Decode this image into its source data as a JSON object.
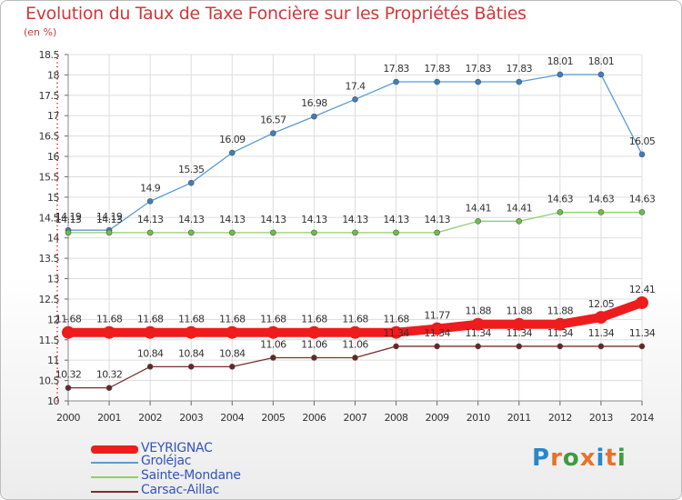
{
  "header": {
    "title": "Evolution du Taux de Taxe Foncière sur les Propriétés Bâties",
    "subtitle": "(en %)"
  },
  "logo": {
    "text": "Proxiti",
    "colors": [
      "#2a87c9",
      "#e8722a",
      "#3f9b3f",
      "#e8722a",
      "#2a87c9",
      "#e8722a",
      "#3f9b3f"
    ]
  },
  "chart_data": {
    "type": "line",
    "title": "Evolution du Taux de Taxe Foncière sur les Propriétés Bâties",
    "subtitle": "(en %)",
    "x": [
      "2000",
      "2001",
      "2002",
      "2003",
      "2004",
      "2005",
      "2006",
      "2007",
      "2008",
      "2009",
      "2010",
      "2011",
      "2012",
      "2013",
      "2014"
    ],
    "ylim": [
      10,
      18.5
    ],
    "yticks": [
      "10",
      "10.5",
      "11",
      "11.5",
      "12",
      "12.5",
      "13",
      "13.5",
      "14",
      "14.5",
      "15",
      "15.5",
      "16",
      "16.5",
      "17",
      "17.5",
      "18",
      "18.5"
    ],
    "grid": true,
    "legend_position": "bottom-left",
    "series": [
      {
        "name": "Groléjac",
        "color": "#5b9bd5",
        "marker": "#3a7fc0",
        "weight": "thin",
        "values": [
          14.19,
          14.19,
          14.9,
          15.35,
          16.09,
          16.57,
          16.98,
          17.4,
          17.83,
          17.83,
          17.83,
          17.83,
          18.01,
          18.01,
          16.05
        ],
        "labels": [
          "14.19",
          "14.19",
          "14.9",
          "15.35",
          "16.09",
          "16.57",
          "16.98",
          "17.4",
          "17.83",
          "17.83",
          "17.83",
          "17.83",
          "18.01",
          "18.01",
          "16.05"
        ]
      },
      {
        "name": "Sainte-Mondane",
        "color": "#8ed16a",
        "marker": "#6cbf45",
        "weight": "thin",
        "values": [
          14.13,
          14.13,
          14.13,
          14.13,
          14.13,
          14.13,
          14.13,
          14.13,
          14.13,
          14.13,
          14.41,
          14.41,
          14.63,
          14.63,
          14.63
        ],
        "labels": [
          "14.13",
          "14.13",
          "14.13",
          "14.13",
          "14.13",
          "14.13",
          "14.13",
          "14.13",
          "14.13",
          "14.13",
          "14.41",
          "14.41",
          "14.63",
          "14.63",
          "14.63"
        ]
      },
      {
        "name": "VEYRIGNAC",
        "color": "#ee1c1c",
        "marker": "#ee1c1c",
        "weight": "thick",
        "values": [
          11.68,
          11.68,
          11.68,
          11.68,
          11.68,
          11.68,
          11.68,
          11.68,
          11.68,
          11.77,
          11.88,
          11.88,
          11.88,
          12.05,
          12.41
        ],
        "labels": [
          "11.68",
          "11.68",
          "11.68",
          "11.68",
          "11.68",
          "11.68",
          "11.68",
          "11.68",
          "11.68",
          "11.77",
          "11.88",
          "11.88",
          "11.88",
          "12.05",
          "12.41"
        ]
      },
      {
        "name": "Carsac-Aillac",
        "color": "#7a2f2f",
        "marker": "#6a2424",
        "weight": "thin",
        "values": [
          10.32,
          10.32,
          10.84,
          10.84,
          10.84,
          11.06,
          11.06,
          11.06,
          11.34,
          11.34,
          11.34,
          11.34,
          11.34,
          11.34,
          11.34
        ],
        "labels": [
          "10.32",
          "10.32",
          "10.84",
          "10.84",
          "10.84",
          "11.06",
          "11.06",
          "11.06",
          "11.34",
          "11.34",
          "11.34",
          "11.34",
          "11.34",
          "11.34",
          "11.34"
        ]
      }
    ],
    "legend": [
      "VEYRIGNAC",
      "Groléjac",
      "Sainte-Mondane",
      "Carsac-Aillac"
    ]
  }
}
